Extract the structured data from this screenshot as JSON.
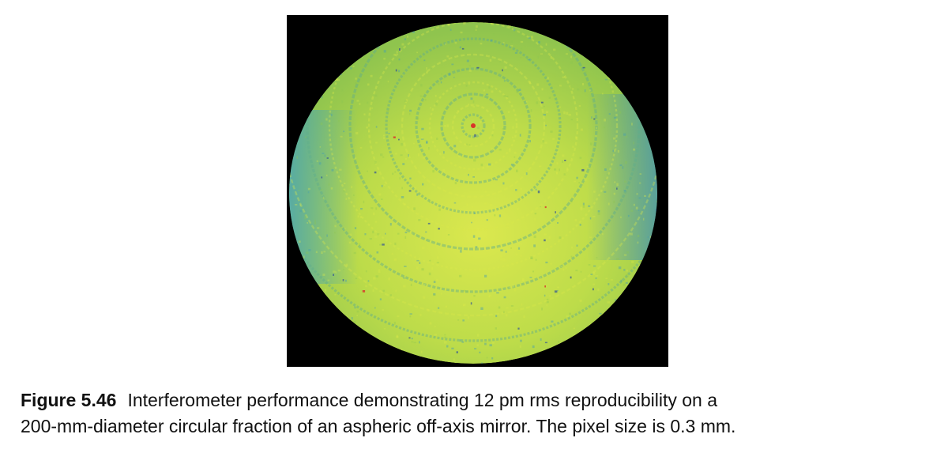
{
  "figure": {
    "label": "Figure 5.46",
    "caption_line1": "Interferometer performance demonstrating 12 pm rms reproducibility on a",
    "caption_line2": "200-mm-diameter circular fraction of an aspheric off-axis mirror. The pixel size is 0.3 mm.",
    "colors": {
      "background": "#000000",
      "base": "#a8cf4a",
      "highlight": "#d9e84a",
      "low": "#4a9fae",
      "deep": "#1f3fa0",
      "peak": "#d8342a"
    }
  }
}
